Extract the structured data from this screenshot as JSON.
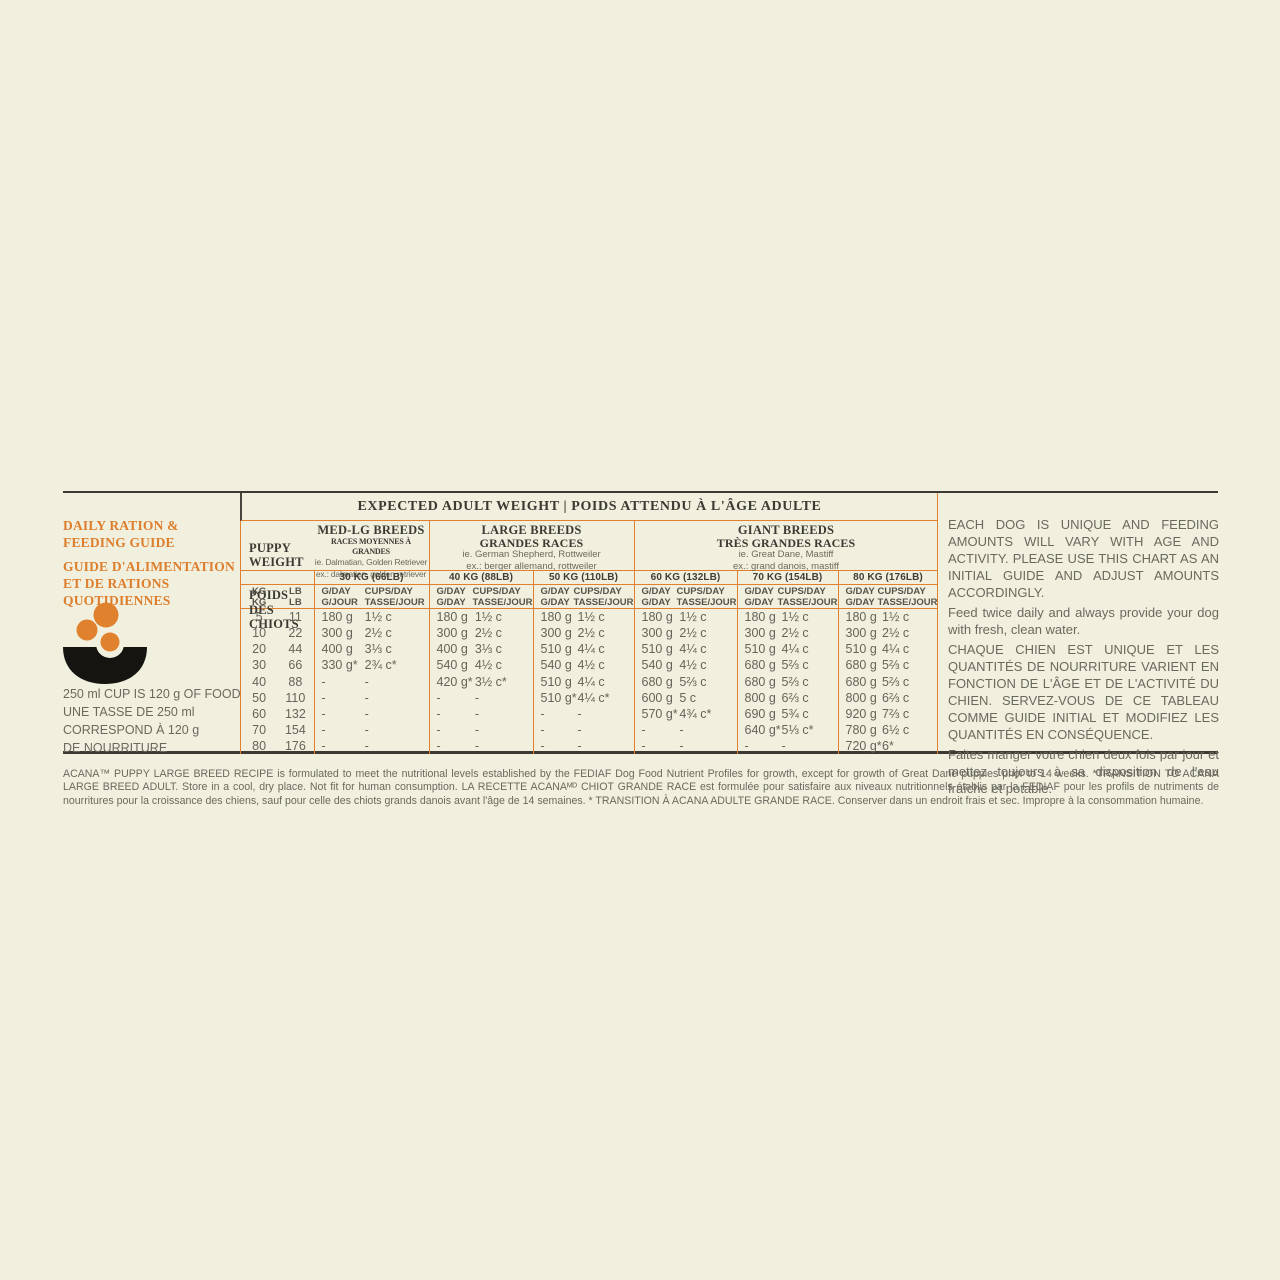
{
  "colors": {
    "background": "#f1f0de",
    "accent_orange": "#e0812e",
    "title_orange": "#dd7e2c",
    "dark_text": "#3c3a33",
    "gray_text": "#6b695e"
  },
  "left_panel": {
    "title_en": "DAILY RATION &\nFEEDING GUIDE",
    "title_fr": "GUIDE D'ALIMENTATION\nET DE RATIONS\nQUOTIDIENNES",
    "bowl_icon": "bowl-with-kibble-icon",
    "cup_note": "250 ml CUP IS 120 g OF FOOD\nUNE TASSE DE 250 ml\nCORRESPOND À 120 g\nDE NOURRITURE"
  },
  "table": {
    "top_header": "EXPECTED ADULT WEIGHT | POIDS ATTENDU À L'ÂGE ADULTE",
    "puppy_weight_en": "PUPPY\nWEIGHT",
    "puppy_weight_fr": "POIDS DES\nCHIOTS",
    "unit_kg": "KG\nKG",
    "unit_lb": "LB\nLB",
    "groups": [
      {
        "name_en": "MED-LG BREEDS",
        "name_fr": "RACES MOYENNES À GRANDES",
        "ie": "ie. Dalmatian, Golden Retriever",
        "ex": "ex.: dalmatien, golden retriever",
        "weights": [
          {
            "label": "30 KG (66LB)",
            "g_head": "G/DAY\nG/JOUR",
            "c_head": "CUPS/DAY\nTASSE/JOUR"
          }
        ]
      },
      {
        "name_en": "LARGE BREEDS",
        "name_fr": "GRANDES RACES",
        "ie": "ie. German Shepherd, Rottweiler",
        "ex": "ex.: berger allemand, rottweiler",
        "weights": [
          {
            "label": "40 KG (88LB)",
            "g_head": "G/DAY\nG/DAY",
            "c_head": "CUPS/DAY\nTASSE/JOUR"
          },
          {
            "label": "50 KG (110LB)",
            "g_head": "G/DAY\nG/DAY",
            "c_head": "CUPS/DAY\nTASSE/JOUR"
          }
        ]
      },
      {
        "name_en": "GIANT BREEDS",
        "name_fr": "TRÈS GRANDES RACES",
        "ie": "ie. Great Dane, Mastiff",
        "ex": "ex.: grand danois, mastiff",
        "weights": [
          {
            "label": "60 KG (132LB)",
            "g_head": "G/DAY\nG/DAY",
            "c_head": "CUPS/DAY\nTASSE/JOUR"
          },
          {
            "label": "70 KG (154LB)",
            "g_head": "G/DAY\nG/DAY",
            "c_head": "CUPS/DAY\nTASSE/JOUR"
          },
          {
            "label": "80 KG (176LB)",
            "g_head": "G/DAY\nG/DAY",
            "c_head": "CUPS/DAY\nTASSE/JOUR"
          }
        ]
      }
    ],
    "rows": [
      {
        "kg": "5",
        "lb": "11",
        "cells": [
          [
            "180 g",
            "1½ c"
          ],
          [
            "180 g",
            "1½ c"
          ],
          [
            "180 g",
            "1½ c"
          ],
          [
            "180 g",
            "1½ c"
          ],
          [
            "180 g",
            "1½ c"
          ],
          [
            "180 g",
            "1½ c"
          ]
        ]
      },
      {
        "kg": "10",
        "lb": "22",
        "cells": [
          [
            "300 g",
            "2½ c"
          ],
          [
            "300 g",
            "2½ c"
          ],
          [
            "300 g",
            "2½ c"
          ],
          [
            "300 g",
            "2½ c"
          ],
          [
            "300 g",
            "2½ c"
          ],
          [
            "300 g",
            "2½ c"
          ]
        ]
      },
      {
        "kg": "20",
        "lb": "44",
        "cells": [
          [
            "400 g",
            "3⅓ c"
          ],
          [
            "400 g",
            "3⅓ c"
          ],
          [
            "510 g",
            "4¼ c"
          ],
          [
            "510 g",
            "4¼ c"
          ],
          [
            "510 g",
            "4¼ c"
          ],
          [
            "510 g",
            "4¼ c"
          ]
        ]
      },
      {
        "kg": "30",
        "lb": "66",
        "cells": [
          [
            "330 g*",
            "2¾ c*"
          ],
          [
            "540 g",
            "4½ c"
          ],
          [
            "540 g",
            "4½ c"
          ],
          [
            "540 g",
            "4½ c"
          ],
          [
            "680 g",
            "5⅔ c"
          ],
          [
            "680 g",
            "5⅔ c"
          ]
        ]
      },
      {
        "kg": "40",
        "lb": "88",
        "cells": [
          [
            "-",
            "-"
          ],
          [
            "420 g*",
            "3½ c*"
          ],
          [
            "510 g",
            "4¼ c"
          ],
          [
            "680 g",
            "5⅔ c"
          ],
          [
            "680 g",
            "5⅔ c"
          ],
          [
            "680 g",
            "5⅔ c"
          ]
        ]
      },
      {
        "kg": "50",
        "lb": "110",
        "cells": [
          [
            "-",
            "-"
          ],
          [
            "-",
            "-"
          ],
          [
            "510 g*",
            "4¼ c*"
          ],
          [
            "600 g",
            "5 c"
          ],
          [
            "800 g",
            "6⅔ c"
          ],
          [
            "800 g",
            "6⅔ c"
          ]
        ]
      },
      {
        "kg": "60",
        "lb": "132",
        "cells": [
          [
            "-",
            "-"
          ],
          [
            "-",
            "-"
          ],
          [
            "-",
            "-"
          ],
          [
            "570 g*",
            "4¾ c*"
          ],
          [
            "690 g",
            "5¾ c"
          ],
          [
            "920 g",
            "7⅔ c"
          ]
        ]
      },
      {
        "kg": "70",
        "lb": "154",
        "cells": [
          [
            "-",
            "-"
          ],
          [
            "-",
            "-"
          ],
          [
            "-",
            "-"
          ],
          [
            "-",
            "-"
          ],
          [
            "640 g*",
            "5⅓ c*"
          ],
          [
            "780 g",
            "6½ c"
          ]
        ]
      },
      {
        "kg": "80",
        "lb": "176",
        "cells": [
          [
            "-",
            "-"
          ],
          [
            "-",
            "-"
          ],
          [
            "-",
            "-"
          ],
          [
            "-",
            "-"
          ],
          [
            "-",
            "-"
          ],
          [
            "720 g*",
            "6*"
          ]
        ]
      }
    ]
  },
  "right_panel": {
    "en_upper": "EACH DOG IS UNIQUE AND FEEDING AMOUNTS WILL VARY WITH AGE AND ACTIVITY. PLEASE USE THIS CHART AS AN INITIAL GUIDE AND ADJUST AMOUNTS ACCORDINGLY.",
    "en_normal": "Feed twice daily and always provide your dog with fresh, clean water.",
    "fr_upper": "CHAQUE CHIEN EST UNIQUE ET LES QUANTITÉS DE NOURRITURE VARIENT EN FONCTION DE L'ÂGE ET DE L'ACTIVITÉ DU CHIEN. SERVEZ-VOUS DE CE TABLEAU COMME GUIDE INITIAL ET MODIFIEZ LES QUANTITÉS EN CONSÉQUENCE.",
    "fr_normal": "Faites manger votre chien deux fois par jour et mettez toujours à sa disposition de l'eau fraîche et potable."
  },
  "footnote": {
    "text_en": "ACANA™ PUPPY LARGE BREED RECIPE is formulated to meet the nutritional levels established by the FEDIAF Dog Food Nutrient Profiles for growth, except for growth of Great Dane puppies prior to 14 weeks. *TRANSITION TO ACANA LARGE BREED ADULT. Store in a cool, dry place. Not fit for human consumption.",
    "text_fr": "LA RECETTE ACANAᴹᴰ CHIOT GRANDE RACE est formulée pour satisfaire aux niveaux nutritionnels établis par la FEDIAF pour les profils de nutriments de nourritures pour la croissance des chiens, sauf pour celle des chiots grands danois avant l'âge de 14 semaines. * TRANSITION À ACANA ADULTE GRANDE RACE. Conserver dans un endroit frais et sec. Impropre à la consommation humaine."
  }
}
